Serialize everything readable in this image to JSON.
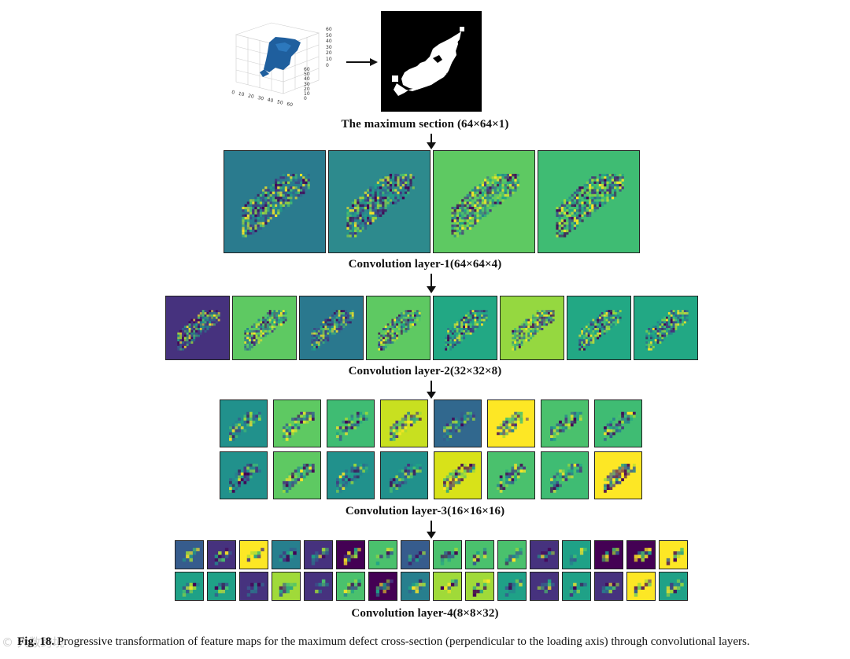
{
  "figure": {
    "top_section_caption": "The maximum section (64×64×1)",
    "layers": [
      {
        "caption": "Convolution layer-1(64×64×4)",
        "maps": [
          "#2a7b8e",
          "#2d8a8d",
          "#5ec962",
          "#3fbc73"
        ]
      },
      {
        "caption": "Convolution layer-2(32×32×8)",
        "maps": [
          "#46327e",
          "#5ec962",
          "#2a788e",
          "#5ec962",
          "#22a884",
          "#95d840",
          "#22a884",
          "#22a884"
        ]
      },
      {
        "caption": "Convolution layer-3(16×16×16)",
        "maps": [
          "#21918c",
          "#5ec962",
          "#3fbc73",
          "#c8e020",
          "#31688e",
          "#fde725",
          "#4ac16d",
          "#3fbc73",
          "#21918c",
          "#5ec962",
          "#21918c",
          "#21918c",
          "#d8e219",
          "#4ac16d",
          "#3fbc73",
          "#fde725"
        ]
      },
      {
        "caption": "Convolution layer-4(8×8×32)",
        "maps": 32
      }
    ],
    "caption_label": "Fig. 18.",
    "caption_text": " Progressive transformation of feature maps for the maximum defect cross-section (perpendicular to the loading axis) through convolutional layers.",
    "watermark": "© 大数跨境"
  },
  "plot3d": {
    "z_ticks": [
      "60",
      "50",
      "40",
      "30",
      "20",
      "10",
      "0"
    ],
    "x_ticks": [
      "0",
      "10",
      "20",
      "30",
      "40",
      "50",
      "60"
    ],
    "y_ticks": [
      "60",
      "50",
      "40",
      "30",
      "20",
      "10",
      "0"
    ]
  }
}
